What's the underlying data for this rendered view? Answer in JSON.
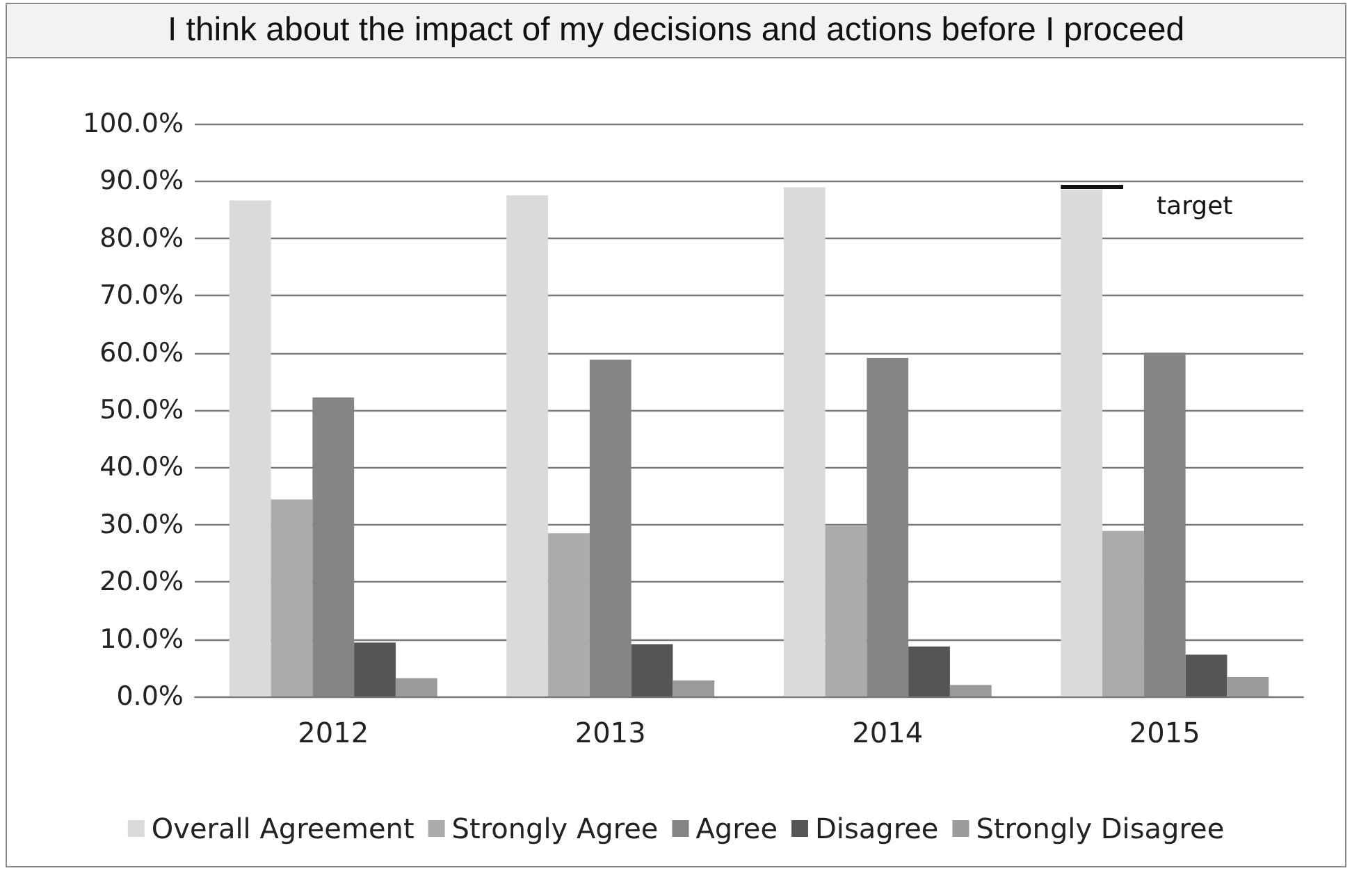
{
  "chart_data": {
    "type": "bar",
    "title": "I think about the impact of my decisions and actions before I proceed",
    "categories": [
      "2012",
      "2013",
      "2014",
      "2015"
    ],
    "series": [
      {
        "name": "Overall Agreement",
        "color": "#dadada",
        "values": [
          86.6,
          87.5,
          88.9,
          88.5
        ]
      },
      {
        "name": "Strongly Agree",
        "color": "#ababab",
        "values": [
          34.4,
          28.5,
          29.8,
          28.9
        ]
      },
      {
        "name": "Agree",
        "color": "#858585",
        "values": [
          52.2,
          58.8,
          59.1,
          60.0
        ]
      },
      {
        "name": "Disagree",
        "color": "#555555",
        "values": [
          9.4,
          9.1,
          8.7,
          7.3
        ]
      },
      {
        "name": "Strongly Disagree",
        "color": "#9a9a9a",
        "values": [
          3.2,
          2.8,
          2.0,
          3.4
        ]
      }
    ],
    "ylim": [
      0,
      100
    ],
    "yticks": [
      {
        "value": 0,
        "label": "0.0%"
      },
      {
        "value": 10,
        "label": "10.0%"
      },
      {
        "value": 20,
        "label": "20.0%"
      },
      {
        "value": 30,
        "label": "30.0%"
      },
      {
        "value": 40,
        "label": "40.0%"
      },
      {
        "value": 50,
        "label": "50.0%"
      },
      {
        "value": 60,
        "label": "60.0%"
      },
      {
        "value": 70,
        "label": "70.0%"
      },
      {
        "value": 80,
        "label": "80.0%"
      },
      {
        "value": 90,
        "label": "90.0%"
      },
      {
        "value": 100,
        "label": "100.0%"
      }
    ],
    "ref_lines": [
      {
        "axis": "y",
        "value": 89,
        "label": "target",
        "color": "#111111"
      }
    ],
    "grid": "y",
    "legend": "bottom"
  }
}
